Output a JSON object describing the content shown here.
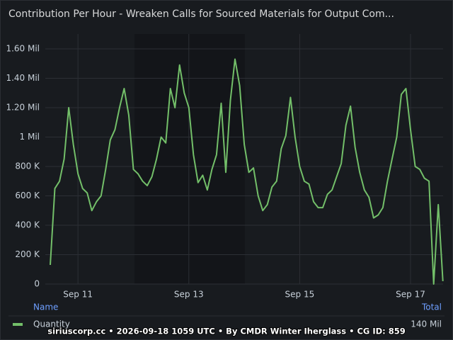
{
  "chart_data": {
    "type": "line",
    "title": "Contribution Per Hour - Wreaken Calls for Sourced Materials for Output Com...",
    "categories": [
      null,
      null,
      null,
      null,
      null,
      null,
      "Sep 11",
      null,
      null,
      null,
      null,
      null,
      null,
      null,
      null,
      null,
      null,
      null,
      null,
      null,
      null,
      null,
      null,
      null,
      null,
      null,
      null,
      null,
      null,
      null,
      "Sep 13",
      null,
      null,
      null,
      null,
      null,
      null,
      null,
      null,
      null,
      null,
      null,
      null,
      null,
      null,
      null,
      null,
      null,
      null,
      null,
      null,
      null,
      null,
      null,
      "Sep 15",
      null,
      null,
      null,
      null,
      null,
      null,
      null,
      null,
      null,
      null,
      null,
      null,
      null,
      null,
      null,
      null,
      null,
      null,
      null,
      null,
      null,
      null,
      null,
      "Sep 17",
      null,
      null,
      null,
      null,
      null,
      null,
      null
    ],
    "series": [
      {
        "name": "Quantity",
        "color": "#73bf69",
        "total": "140 Mil",
        "values": [
          130000,
          650000,
          700000,
          850000,
          1200000,
          950000,
          750000,
          650000,
          620000,
          500000,
          560000,
          600000,
          780000,
          980000,
          1050000,
          1200000,
          1330000,
          1150000,
          780000,
          750000,
          700000,
          670000,
          730000,
          850000,
          1000000,
          960000,
          1330000,
          1200000,
          1490000,
          1300000,
          1200000,
          880000,
          690000,
          740000,
          640000,
          780000,
          880000,
          1230000,
          760000,
          1250000,
          1530000,
          1350000,
          950000,
          760000,
          790000,
          600000,
          500000,
          540000,
          660000,
          700000,
          920000,
          1010000,
          1270000,
          1000000,
          800000,
          700000,
          680000,
          560000,
          520000,
          520000,
          610000,
          640000,
          730000,
          820000,
          1080000,
          1210000,
          930000,
          760000,
          640000,
          590000,
          450000,
          470000,
          520000,
          700000,
          850000,
          1000000,
          1290000,
          1330000,
          1050000,
          800000,
          780000,
          720000,
          700000,
          0,
          540000,
          20000
        ]
      }
    ],
    "ylim": [
      0,
      1600000
    ],
    "yticks": [
      0,
      {
        "value": 200000,
        "label": "200 K"
      },
      {
        "value": 400000,
        "label": "400 K"
      },
      {
        "value": 600000,
        "label": "600 K"
      },
      {
        "value": 800000,
        "label": "800 K"
      },
      {
        "value": 1000000,
        "label": "1 Mil"
      },
      {
        "value": 1200000,
        "label": "1.20 Mil"
      },
      {
        "value": 1400000,
        "label": "1.40 Mil"
      },
      {
        "value": 1600000,
        "label": "1.60 Mil"
      }
    ],
    "grid": true,
    "legend": {
      "name_header": "Name",
      "total_header": "Total"
    },
    "footer": "siriuscorp.cc • 2026-09-18 1059 UTC • By CMDR Winter Iherglass • CG ID: 859"
  }
}
